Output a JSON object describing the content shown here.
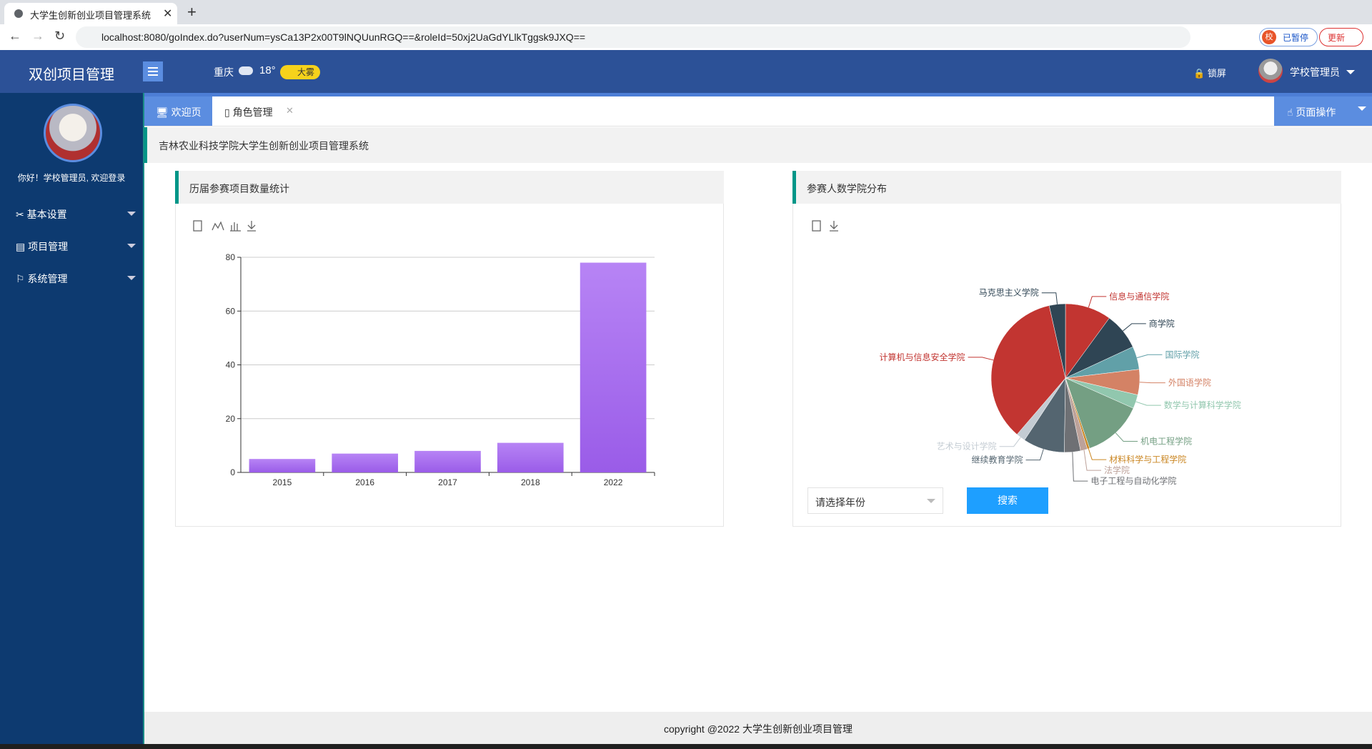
{
  "browser": {
    "tab_title": "大学生创新创业项目管理系统",
    "url": "localhost:8080/goIndex.do?userNum=ysCa13P2x00T9lNQUunRGQ==&roleId=50xj2UaGdYLlkTggsk9JXQ==",
    "profile_badge": "校",
    "paused": "已暂停",
    "update": "更新"
  },
  "header": {
    "title": "双创项目管理",
    "city": "重庆",
    "temperature": "18°",
    "weather": "大雾",
    "lock": "锁屏",
    "user": "学校管理员"
  },
  "sidebar": {
    "greeting": "你好！学校管理员, 欢迎登录",
    "menu": [
      "基本设置",
      "项目管理",
      "系统管理"
    ]
  },
  "tabs": {
    "items": [
      "欢迎页",
      "角色管理"
    ],
    "actions": "页面操作"
  },
  "banner": "吉林农业科技学院大学生创新创业项目管理系统",
  "panels": [
    {
      "title": "历届参赛项目数量统计"
    },
    {
      "title": "参赛人数学院分布",
      "select_placeholder": "请选择年份",
      "search_button": "搜索"
    }
  ],
  "footer": "copyright @2022 大学生创新创业项目管理",
  "chart_data": [
    {
      "type": "bar",
      "categories": [
        "2015",
        "2016",
        "2017",
        "2018",
        "2022"
      ],
      "values": [
        5,
        7,
        8,
        11,
        78
      ],
      "colors": [
        "#b784f5",
        "#9a5ce8"
      ],
      "ylim": [
        0,
        80
      ],
      "yticks": [
        0,
        20,
        40,
        60,
        80
      ],
      "grid": true
    },
    {
      "type": "pie",
      "categories": [
        "信息与通信学院",
        "商学院",
        "国际学院",
        "外国语学院",
        "数学与计算科学学院",
        "机电工程学院",
        "材料科学与工程学院",
        "法学院",
        "电子工程与自动化学院",
        "继续教育学院",
        "艺术与设计学院",
        "计算机与信息安全学院",
        "马克思主义学院"
      ],
      "values": [
        20,
        16,
        10,
        11,
        6,
        26,
        1,
        3,
        7,
        18,
        4,
        70,
        7
      ],
      "colors": [
        "#c23531",
        "#2f4554",
        "#61a0a8",
        "#d48265",
        "#91c7ae",
        "#749f83",
        "#ca8622",
        "#bda29a",
        "#6e7074",
        "#546570",
        "#c4ccd3",
        "#c23531",
        "#2f4554"
      ]
    }
  ]
}
